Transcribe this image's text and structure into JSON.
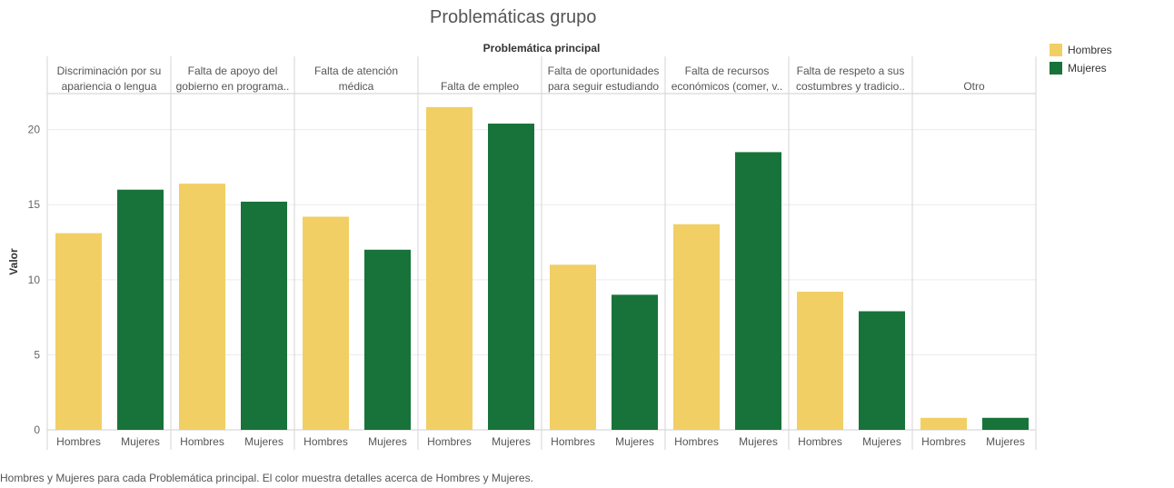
{
  "chart_data": {
    "type": "bar",
    "title": "Problemáticas grupo",
    "facet_label": "Problemática principal",
    "ylabel": "Valor",
    "ylim": [
      0,
      22.4
    ],
    "yticks": [
      0,
      5,
      10,
      15,
      20
    ],
    "grid": true,
    "legend_position": "top-right",
    "series_names": [
      "Hombres",
      "Mujeres"
    ],
    "colors": {
      "Hombres": "#f1cf65",
      "Mujeres": "#17733a"
    },
    "panels": [
      {
        "header": [
          "Discriminación por su",
          "apariencia o lengua"
        ],
        "values": [
          13.1,
          16.0
        ]
      },
      {
        "header": [
          "Falta de apoyo del",
          "gobierno en programa.."
        ],
        "values": [
          16.4,
          15.2
        ]
      },
      {
        "header": [
          "Falta de atención",
          "médica"
        ],
        "values": [
          14.2,
          12.0
        ]
      },
      {
        "header": [
          "Falta de empleo"
        ],
        "values": [
          21.5,
          20.4
        ]
      },
      {
        "header": [
          "Falta de oportunidades",
          "para seguir estudiando"
        ],
        "values": [
          11.0,
          9.0
        ]
      },
      {
        "header": [
          "Falta de recursos",
          "económicos (comer, v.."
        ],
        "values": [
          13.7,
          18.5
        ]
      },
      {
        "header": [
          "Falta de respeto a sus",
          "costumbres y tradicio.."
        ],
        "values": [
          9.2,
          7.9
        ]
      },
      {
        "header": [
          "Otro"
        ],
        "values": [
          0.8,
          0.8
        ]
      }
    ]
  },
  "legend": {
    "items": [
      {
        "label": "Hombres",
        "color": "#f1cf65"
      },
      {
        "label": "Mujeres",
        "color": "#17733a"
      }
    ]
  },
  "footer": "Hombres y Mujeres para cada Problemática principal.  El color muestra detalles acerca de Hombres y Mujeres."
}
